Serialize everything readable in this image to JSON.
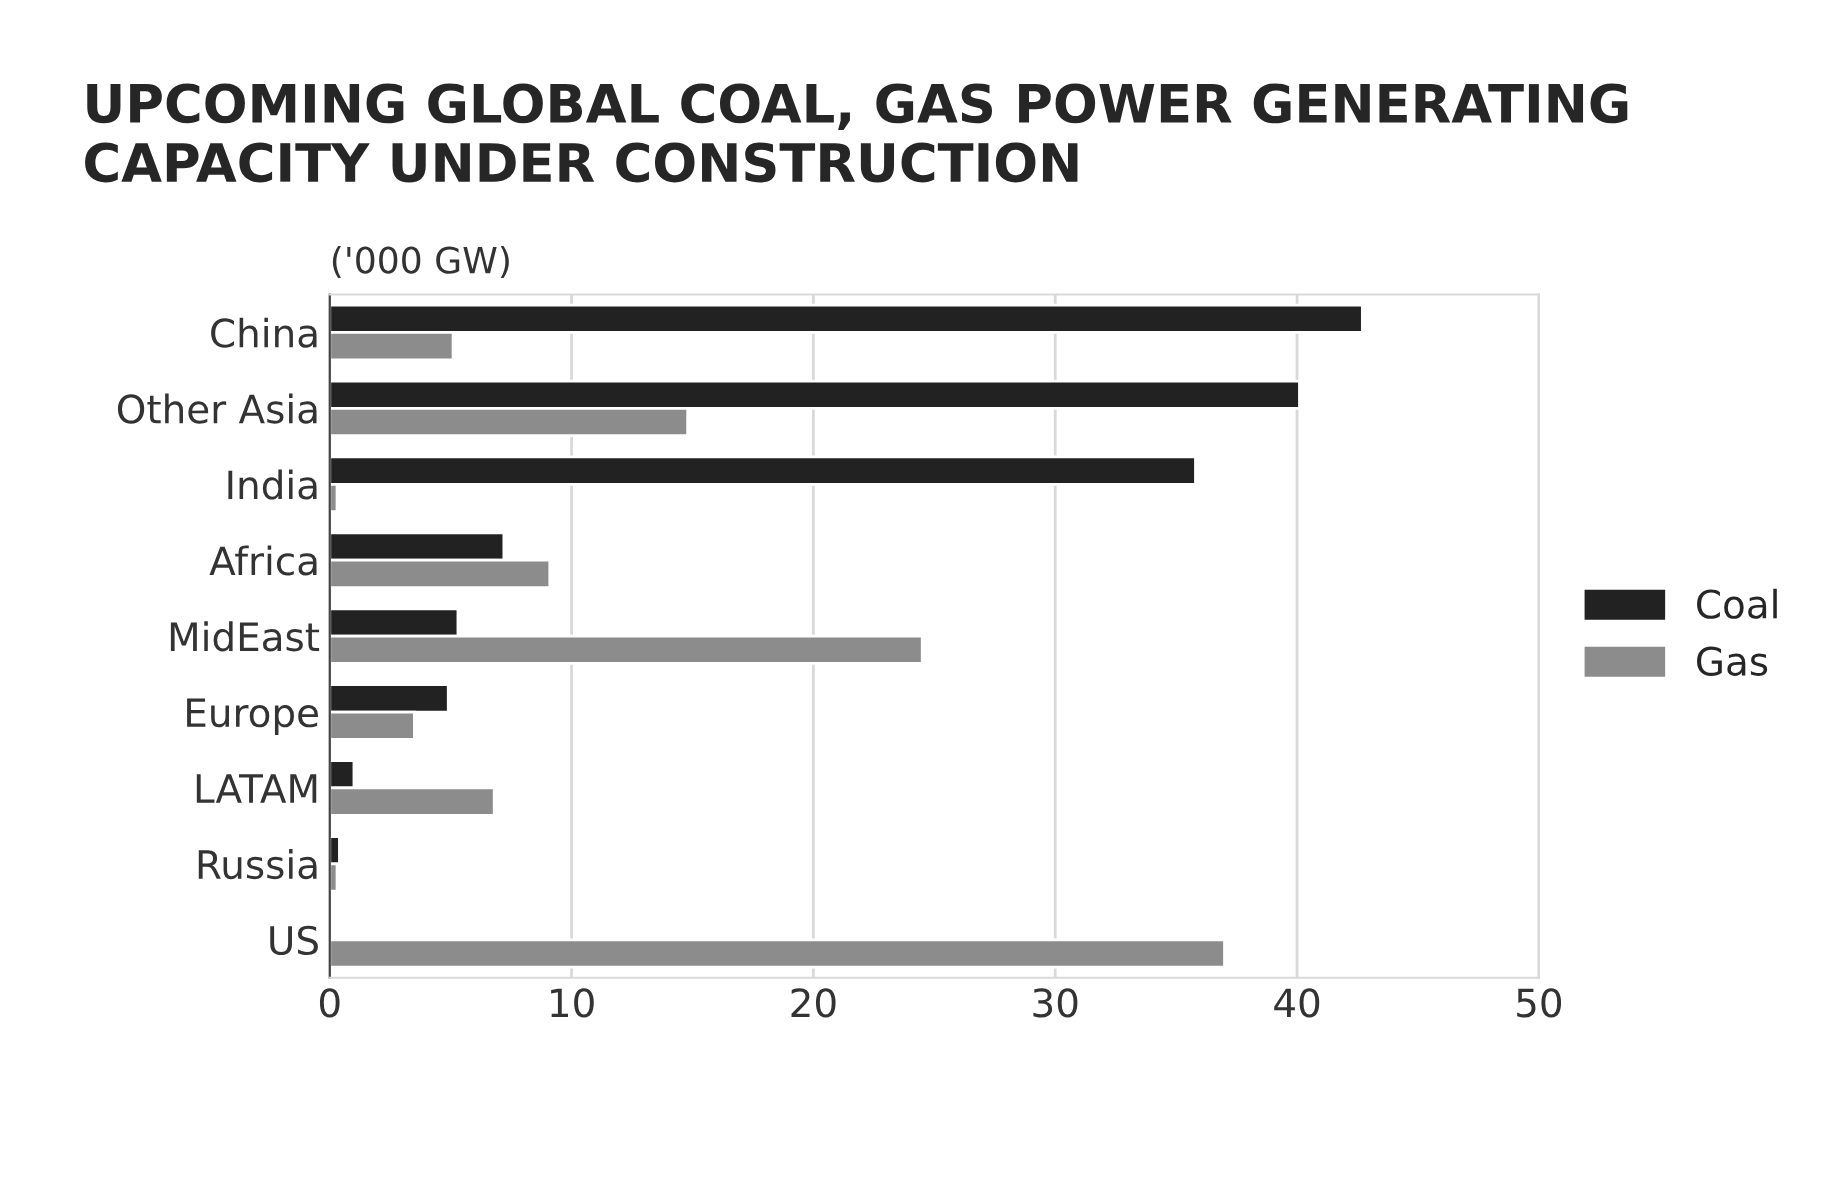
{
  "chart_data": {
    "type": "bar",
    "orientation": "horizontal",
    "title": "UPCOMING GLOBAL COAL, GAS POWER GENERATING CAPACITY UNDER CONSTRUCTION",
    "xlabel": "('000 GW)",
    "categories": [
      "China",
      "Other Asia",
      "India",
      "Africa",
      "MidEast",
      "Europe",
      "LATAM",
      "Russia",
      "US"
    ],
    "series": [
      {
        "name": "Coal",
        "color": "#222222",
        "values": [
          42.7,
          40.1,
          35.8,
          7.2,
          5.3,
          4.9,
          1.0,
          0.4,
          null
        ]
      },
      {
        "name": "Gas",
        "color": "#8c8c8c",
        "values": [
          5.1,
          14.8,
          0.3,
          9.1,
          24.5,
          3.5,
          6.8,
          0.3,
          37.0
        ]
      }
    ],
    "xlim": [
      0,
      50
    ],
    "xticks": [
      0,
      10,
      20,
      30,
      40,
      50
    ],
    "grid": "x",
    "legend": "right"
  }
}
